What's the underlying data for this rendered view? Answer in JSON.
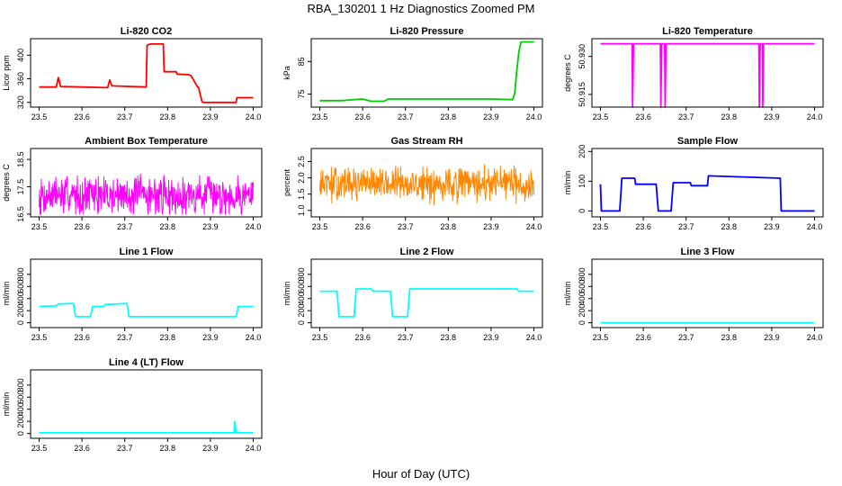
{
  "figure": {
    "title": "RBA_130201  1 Hz Diagnostics Zoomed PM",
    "xlabel": "Hour of Day (UTC)"
  },
  "colors": {
    "axes": "#000000",
    "background": "#ffffff"
  },
  "chart_data": [
    {
      "type": "line",
      "title": "Li-820 CO2",
      "ylabel": "Licor ppm",
      "xlim": [
        23.48,
        24.02
      ],
      "ylim": [
        312,
        428
      ],
      "xticks": [
        "23.5",
        "23.6",
        "23.7",
        "23.8",
        "23.9",
        "24.0"
      ],
      "yticks": [
        "320",
        "360",
        "400"
      ],
      "color": "#ff0000",
      "series": [
        {
          "x": [
            23.5,
            23.54,
            23.545,
            23.55,
            23.6,
            23.66,
            23.665,
            23.67,
            23.75,
            23.752,
            23.76,
            23.79,
            23.792,
            23.82,
            23.822,
            23.85,
            23.855,
            23.87,
            23.872,
            23.88,
            23.882,
            23.96,
            23.962,
            24.0
          ],
          "y": [
            346,
            346,
            362,
            347,
            346,
            345,
            358,
            348,
            346,
            417,
            419,
            419,
            372,
            372,
            368,
            367,
            365,
            346,
            346,
            322,
            320,
            320,
            328,
            328
          ]
        }
      ]
    },
    {
      "type": "line",
      "title": "Li-820 Pressure",
      "ylabel": "kPa",
      "xlim": [
        23.48,
        24.02
      ],
      "ylim": [
        71,
        92
      ],
      "xticks": [
        "23.5",
        "23.6",
        "23.7",
        "23.8",
        "23.9",
        "24.0"
      ],
      "yticks": [
        "75",
        "85"
      ],
      "color": "#00cc00",
      "series": [
        {
          "x": [
            23.5,
            23.55,
            23.6,
            23.62,
            23.65,
            23.66,
            23.72,
            23.9,
            23.95,
            23.955,
            23.96,
            23.965,
            23.97,
            24.0
          ],
          "y": [
            73,
            73,
            73.5,
            72.8,
            72.8,
            73.5,
            73.5,
            73.5,
            73.3,
            75,
            82,
            88,
            91,
            91
          ]
        }
      ]
    },
    {
      "type": "line",
      "title": "Li-820 Temperature",
      "ylabel": "degrees C",
      "xlim": [
        23.48,
        24.02
      ],
      "ylim": [
        50.91,
        50.937
      ],
      "xticks": [
        "23.5",
        "23.6",
        "23.7",
        "23.8",
        "23.9",
        "24.0"
      ],
      "yticks": [
        "50.915",
        "50.930"
      ],
      "color": "#ff00ff",
      "series": [
        {
          "x": [
            23.5,
            23.574,
            23.575,
            23.577,
            23.64,
            23.641,
            23.643,
            23.65,
            23.651,
            23.653,
            23.87,
            23.871,
            23.873,
            23.878,
            23.879,
            23.881,
            24.0
          ],
          "y": [
            50.935,
            50.935,
            50.91,
            50.935,
            50.935,
            50.91,
            50.935,
            50.935,
            50.91,
            50.935,
            50.935,
            50.91,
            50.935,
            50.935,
            50.91,
            50.935,
            50.935
          ]
        }
      ]
    },
    {
      "type": "line",
      "title": "Ambient Box Temperature",
      "ylabel": "degrees C",
      "xlim": [
        23.48,
        24.02
      ],
      "ylim": [
        16.4,
        18.9
      ],
      "xticks": [
        "23.5",
        "23.6",
        "23.7",
        "23.8",
        "23.9",
        "24.0"
      ],
      "yticks": [
        "16.5",
        "17.5",
        "18.5"
      ],
      "color": "#ff00ff",
      "noise": {
        "seed": 7,
        "n": 500,
        "base": 17.2,
        "amp": 0.9,
        "min": 16.5,
        "max": 18.7
      },
      "series": [
        {
          "x": [
            23.5,
            24.0
          ],
          "y": [
            17.2,
            17.2
          ]
        }
      ]
    },
    {
      "type": "line",
      "title": "Gas Stream RH",
      "ylabel": "percent",
      "xlim": [
        23.48,
        24.02
      ],
      "ylim": [
        0.8,
        2.9
      ],
      "xticks": [
        "23.5",
        "23.6",
        "23.7",
        "23.8",
        "23.9",
        "24.0"
      ],
      "yticks": [
        "1.0",
        "1.5",
        "2.0",
        "2.5"
      ],
      "color": "#ff8800",
      "noise": {
        "seed": 13,
        "n": 520,
        "base": 1.8,
        "amp": 0.65,
        "min": 1.0,
        "max": 2.6
      },
      "series": [
        {
          "x": [
            23.5,
            24.0
          ],
          "y": [
            1.8,
            1.8
          ]
        }
      ]
    },
    {
      "type": "line",
      "title": "Sample Flow",
      "ylabel": "ml/min",
      "xlim": [
        23.48,
        24.02
      ],
      "ylim": [
        -20,
        210
      ],
      "xticks": [
        "23.5",
        "23.6",
        "23.7",
        "23.8",
        "23.9",
        "24.0"
      ],
      "yticks": [
        "0",
        "100",
        "200"
      ],
      "color": "#0000ff",
      "series": [
        {
          "x": [
            23.5,
            23.502,
            23.505,
            23.545,
            23.55,
            23.58,
            23.582,
            23.59,
            23.63,
            23.635,
            23.665,
            23.67,
            23.71,
            23.712,
            23.75,
            23.752,
            23.92,
            23.922,
            24.0
          ],
          "y": [
            90,
            0,
            0,
            0,
            110,
            110,
            90,
            90,
            90,
            0,
            0,
            95,
            95,
            85,
            85,
            118,
            110,
            0,
            0
          ]
        }
      ]
    },
    {
      "type": "line",
      "title": "Line 1 Flow",
      "ylabel": "ml/min",
      "xlim": [
        23.48,
        24.02
      ],
      "ylim": [
        -80,
        1050
      ],
      "xticks": [
        "23.5",
        "23.6",
        "23.7",
        "23.8",
        "23.9",
        "24.0"
      ],
      "yticks": [
        "0",
        "200",
        "400",
        "600",
        "800"
      ],
      "color": "#00ffff",
      "series": [
        {
          "x": [
            23.5,
            23.54,
            23.545,
            23.58,
            23.585,
            23.62,
            23.625,
            23.65,
            23.655,
            23.705,
            23.71,
            23.96,
            23.965,
            24.0
          ],
          "y": [
            270,
            280,
            310,
            320,
            100,
            100,
            270,
            270,
            300,
            320,
            100,
            100,
            270,
            270
          ]
        }
      ]
    },
    {
      "type": "line",
      "title": "Line 2 Flow",
      "ylabel": "ml/min",
      "xlim": [
        23.48,
        24.02
      ],
      "ylim": [
        -80,
        1050
      ],
      "xticks": [
        "23.5",
        "23.6",
        "23.7",
        "23.8",
        "23.9",
        "24.0"
      ],
      "yticks": [
        "0",
        "200",
        "400",
        "600",
        "800"
      ],
      "color": "#00ffff",
      "series": [
        {
          "x": [
            23.5,
            23.54,
            23.545,
            23.58,
            23.585,
            23.62,
            23.625,
            23.665,
            23.67,
            23.705,
            23.71,
            23.96,
            23.965,
            24.0
          ],
          "y": [
            520,
            520,
            100,
            100,
            560,
            560,
            520,
            520,
            100,
            100,
            560,
            560,
            520,
            520
          ]
        }
      ]
    },
    {
      "type": "line",
      "title": "Line 3 Flow",
      "ylabel": "ml/min",
      "xlim": [
        23.48,
        24.02
      ],
      "ylim": [
        -80,
        1050
      ],
      "xticks": [
        "23.5",
        "23.6",
        "23.7",
        "23.8",
        "23.9",
        "24.0"
      ],
      "yticks": [
        "0",
        "200",
        "400",
        "600",
        "800"
      ],
      "color": "#00ffff",
      "series": [
        {
          "x": [
            23.5,
            24.0
          ],
          "y": [
            0,
            0
          ]
        }
      ]
    },
    {
      "type": "line",
      "title": "Line 4 (LT) Flow",
      "ylabel": "ml/min",
      "xlim": [
        23.48,
        24.02
      ],
      "ylim": [
        -80,
        1050
      ],
      "xticks": [
        "23.5",
        "23.6",
        "23.7",
        "23.8",
        "23.9",
        "24.0"
      ],
      "yticks": [
        "0",
        "200",
        "400",
        "600",
        "800"
      ],
      "color": "#00ffff",
      "series": [
        {
          "x": [
            23.5,
            23.955,
            23.957,
            23.96,
            23.962,
            24.0
          ],
          "y": [
            10,
            10,
            200,
            15,
            10,
            10
          ]
        }
      ]
    }
  ]
}
